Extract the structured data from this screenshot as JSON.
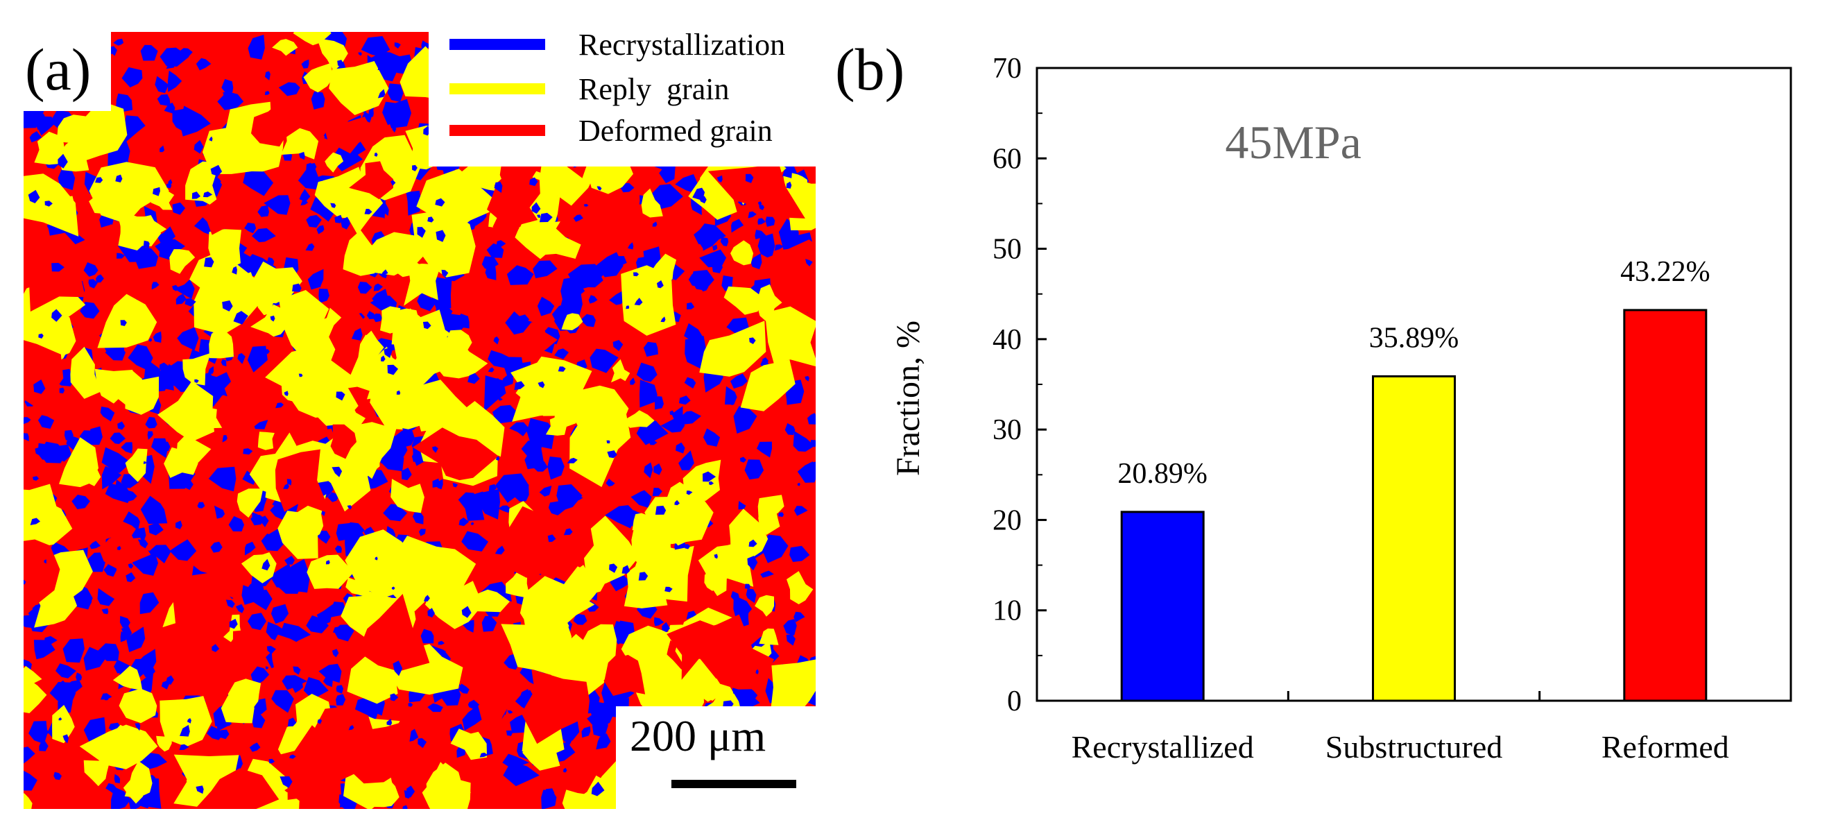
{
  "panel_a": {
    "label": "(a)",
    "legend": [
      {
        "label": "Recrystallization",
        "color": "#0000ff"
      },
      {
        "label": "Reply  grain",
        "color": "#ffff00"
      },
      {
        "label": "Deformed grain",
        "color": "#ff0000"
      }
    ],
    "scale_bar": "200 μm",
    "map_colors": {
      "background": "#ff0000",
      "grain": "#ffff00",
      "recrystallized": "#0000ff"
    }
  },
  "panel_b": {
    "label": "(b)"
  },
  "chart_data": {
    "type": "bar",
    "categories": [
      "Recrystallized",
      "Substructured",
      "Reformed"
    ],
    "values": [
      20.89,
      35.89,
      43.22
    ],
    "data_labels": [
      "20.89%",
      "35.89%",
      "43.22%"
    ],
    "colors": [
      "#0000ff",
      "#ffff00",
      "#ff0000"
    ],
    "annotation": "45MPa",
    "ylabel": "Fraction, %",
    "xlabel": "",
    "ylim": [
      0,
      70
    ],
    "yticks": [
      "0",
      "10",
      "20",
      "30",
      "40",
      "50",
      "60",
      "70"
    ],
    "grid": false
  }
}
